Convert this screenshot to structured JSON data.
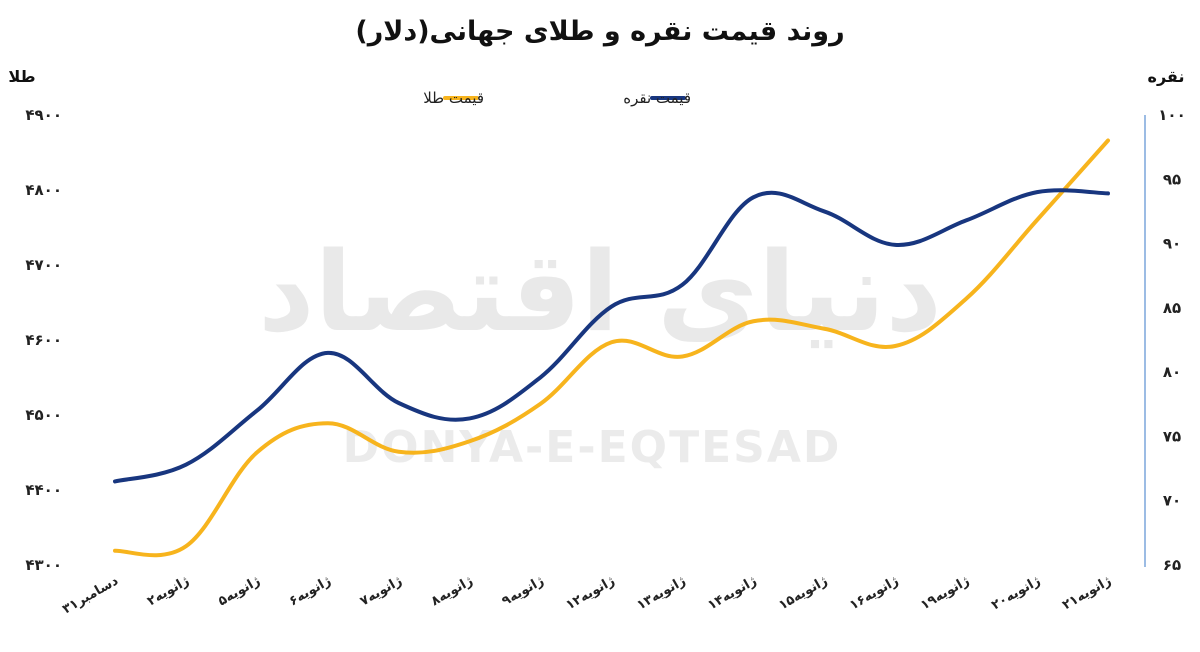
{
  "chart_data": {
    "type": "line",
    "title": "روند قیمت نقره و طلای جهانی(دلار)",
    "ylabel_left": "طلا",
    "ylabel_right": "نقره",
    "ylim_left": [
      4300,
      4900
    ],
    "ylim_right": [
      65,
      100
    ],
    "yticks_left": [
      4300,
      4400,
      4500,
      4600,
      4700,
      4800,
      4900
    ],
    "yticks_right": [
      65,
      70,
      75,
      80,
      85,
      90,
      95,
      100
    ],
    "ytick_labels_left": [
      "۴۳۰۰",
      "۴۴۰۰",
      "۴۵۰۰",
      "۴۶۰۰",
      "۴۷۰۰",
      "۴۸۰۰",
      "۴۹۰۰"
    ],
    "ytick_labels_right": [
      "۶۵",
      "۷۰",
      "۷۵",
      "۸۰",
      "۸۵",
      "۹۰",
      "۹۵",
      "۱۰۰"
    ],
    "categories": [
      "۳۱دسامبر",
      "۲ژانویه",
      "۵ژانویه",
      "۶ژانویه",
      "۷ژانویه",
      "۸ژانویه",
      "۹ژانویه",
      "۱۲ژانویه",
      "۱۳ژانویه",
      "۱۴ژانویه",
      "۱۵ژانویه",
      "۱۶ژانویه",
      "۱۹ژانویه",
      "۲۰ژانویه",
      "۲۱ژانویه"
    ],
    "series": [
      {
        "name": "قیمت طلا",
        "axis": "left",
        "color": "#f7b41d",
        "values": [
          4319,
          4325,
          4450,
          4489,
          4451,
          4465,
          4515,
          4597,
          4578,
          4625,
          4615,
          4592,
          4655,
          4760,
          4866
        ]
      },
      {
        "name": "قیمت نقره",
        "axis": "right",
        "color": "#18367f",
        "values": [
          71.5,
          72.8,
          77.0,
          81.5,
          77.6,
          76.4,
          79.6,
          85.1,
          86.8,
          93.6,
          92.5,
          89.9,
          91.8,
          94.0,
          93.9
        ]
      }
    ],
    "legend": {
      "position": "top"
    },
    "watermark": {
      "persian": "دنیای اقتصاد",
      "latin": "DONYA-E-EQTESAD"
    },
    "grid": false
  }
}
